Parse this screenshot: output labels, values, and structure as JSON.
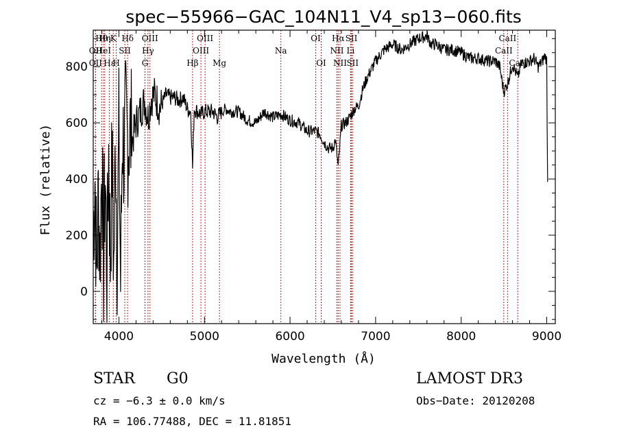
{
  "chart_data": {
    "type": "line",
    "title": "spec−55966−GAC_104N11_V4_sp13−060.fits",
    "xlabel": "Wavelength (Å)",
    "ylabel": "Flux (relative)",
    "xlim": [
      3700,
      9100
    ],
    "ylim": [
      -115,
      930
    ],
    "xticks": [
      4000,
      5000,
      6000,
      7000,
      8000,
      9000
    ],
    "xtick_labels": [
      "4000",
      "5000",
      "6000",
      "7000",
      "8000",
      "9000"
    ],
    "yticks": [
      0,
      200,
      400,
      600,
      800
    ],
    "ytick_labels": [
      "0",
      "200",
      "400",
      "600",
      "800"
    ],
    "series": [
      {
        "name": "flux",
        "x": [
          3700,
          3720,
          3740,
          3760,
          3780,
          3800,
          3820,
          3840,
          3860,
          3880,
          3900,
          3920,
          3940,
          3960,
          3980,
          4000,
          4020,
          4040,
          4060,
          4080,
          4100,
          4130,
          4160,
          4200,
          4250,
          4300,
          4340,
          4380,
          4420,
          4480,
          4550,
          4600,
          4650,
          4700,
          4750,
          4800,
          4840,
          4861,
          4880,
          4920,
          4960,
          5000,
          5050,
          5100,
          5150,
          5200,
          5250,
          5300,
          5350,
          5400,
          5500,
          5600,
          5700,
          5800,
          5900,
          6000,
          6100,
          6200,
          6300,
          6350,
          6400,
          6450,
          6500,
          6530,
          6563,
          6600,
          6650,
          6700,
          6750,
          6800,
          6850,
          6900,
          6950,
          7000,
          7100,
          7200,
          7300,
          7400,
          7500,
          7600,
          7650,
          7700,
          7800,
          7900,
          8000,
          8100,
          8200,
          8300,
          8400,
          8450,
          8498,
          8542,
          8600,
          8662,
          8700,
          8800,
          8850,
          8900,
          8950,
          8980,
          9000,
          9010
        ],
        "y": [
          200,
          420,
          50,
          350,
          120,
          480,
          90,
          420,
          60,
          500,
          110,
          470,
          80,
          560,
          150,
          560,
          30,
          580,
          480,
          600,
          540,
          570,
          540,
          600,
          640,
          680,
          620,
          690,
          700,
          650,
          700,
          690,
          690,
          680,
          690,
          650,
          640,
          440,
          650,
          640,
          630,
          640,
          640,
          640,
          620,
          640,
          650,
          640,
          640,
          640,
          610,
          600,
          640,
          620,
          630,
          610,
          600,
          570,
          570,
          560,
          530,
          510,
          510,
          540,
          440,
          590,
          600,
          620,
          650,
          660,
          720,
          760,
          790,
          820,
          860,
          880,
          860,
          880,
          900,
          910,
          880,
          880,
          860,
          860,
          850,
          830,
          830,
          820,
          820,
          800,
          710,
          740,
          810,
          760,
          810,
          820,
          830,
          800,
          820,
          840,
          820,
          390
        ]
      }
    ],
    "spectral_lines": [
      {
        "label": "Hθ",
        "x": 3798,
        "row": 0
      },
      {
        "label": "Hη",
        "x": 3835,
        "row": 0
      },
      {
        "label": "K",
        "x": 3934,
        "row": 0
      },
      {
        "label": "Hδ",
        "x": 4102,
        "row": 0
      },
      {
        "label": "OII",
        "x": 3727,
        "row": 1
      },
      {
        "label": "HeI",
        "x": 3820,
        "row": 1
      },
      {
        "label": "SII",
        "x": 4069,
        "row": 1
      },
      {
        "label": "OII",
        "x": 3727,
        "row": 2
      },
      {
        "label": "Hε",
        "x": 3889,
        "row": 2
      },
      {
        "label": "H",
        "x": 3969,
        "row": 2
      },
      {
        "label": "OIII",
        "x": 4363,
        "row": 0
      },
      {
        "label": "Hγ",
        "x": 4340,
        "row": 1
      },
      {
        "label": "G",
        "x": 4305,
        "row": 2
      },
      {
        "label": "OIII",
        "x": 5007,
        "row": 0
      },
      {
        "label": "OIII",
        "x": 4959,
        "row": 1
      },
      {
        "label": "Hβ",
        "x": 4861,
        "row": 2
      },
      {
        "label": "Mg",
        "x": 5175,
        "row": 2
      },
      {
        "label": "Na",
        "x": 5893,
        "row": 1
      },
      {
        "label": "OI",
        "x": 6300,
        "row": 0
      },
      {
        "label": "OI",
        "x": 6364,
        "row": 2
      },
      {
        "label": "Hα",
        "x": 6563,
        "row": 0
      },
      {
        "label": "SII",
        "x": 6717,
        "row": 0
      },
      {
        "label": "NII",
        "x": 6548,
        "row": 1
      },
      {
        "label": "Li",
        "x": 6708,
        "row": 1
      },
      {
        "label": "NII",
        "x": 6584,
        "row": 2
      },
      {
        "label": "SII",
        "x": 6731,
        "row": 2
      },
      {
        "label": "CaII",
        "x": 8542,
        "row": 0
      },
      {
        "label": "CaII",
        "x": 8498,
        "row": 1
      },
      {
        "label": "CaII",
        "x": 8662,
        "row": 2
      }
    ]
  },
  "info": {
    "class": "STAR",
    "subclass": "G0",
    "survey": "LAMOST DR3",
    "cz": "cz = −6.3 ± 0.0 km/s",
    "obs_date": "Obs−Date: 20120208",
    "coords": "RA = 106.77488, DEC =  11.81851"
  }
}
